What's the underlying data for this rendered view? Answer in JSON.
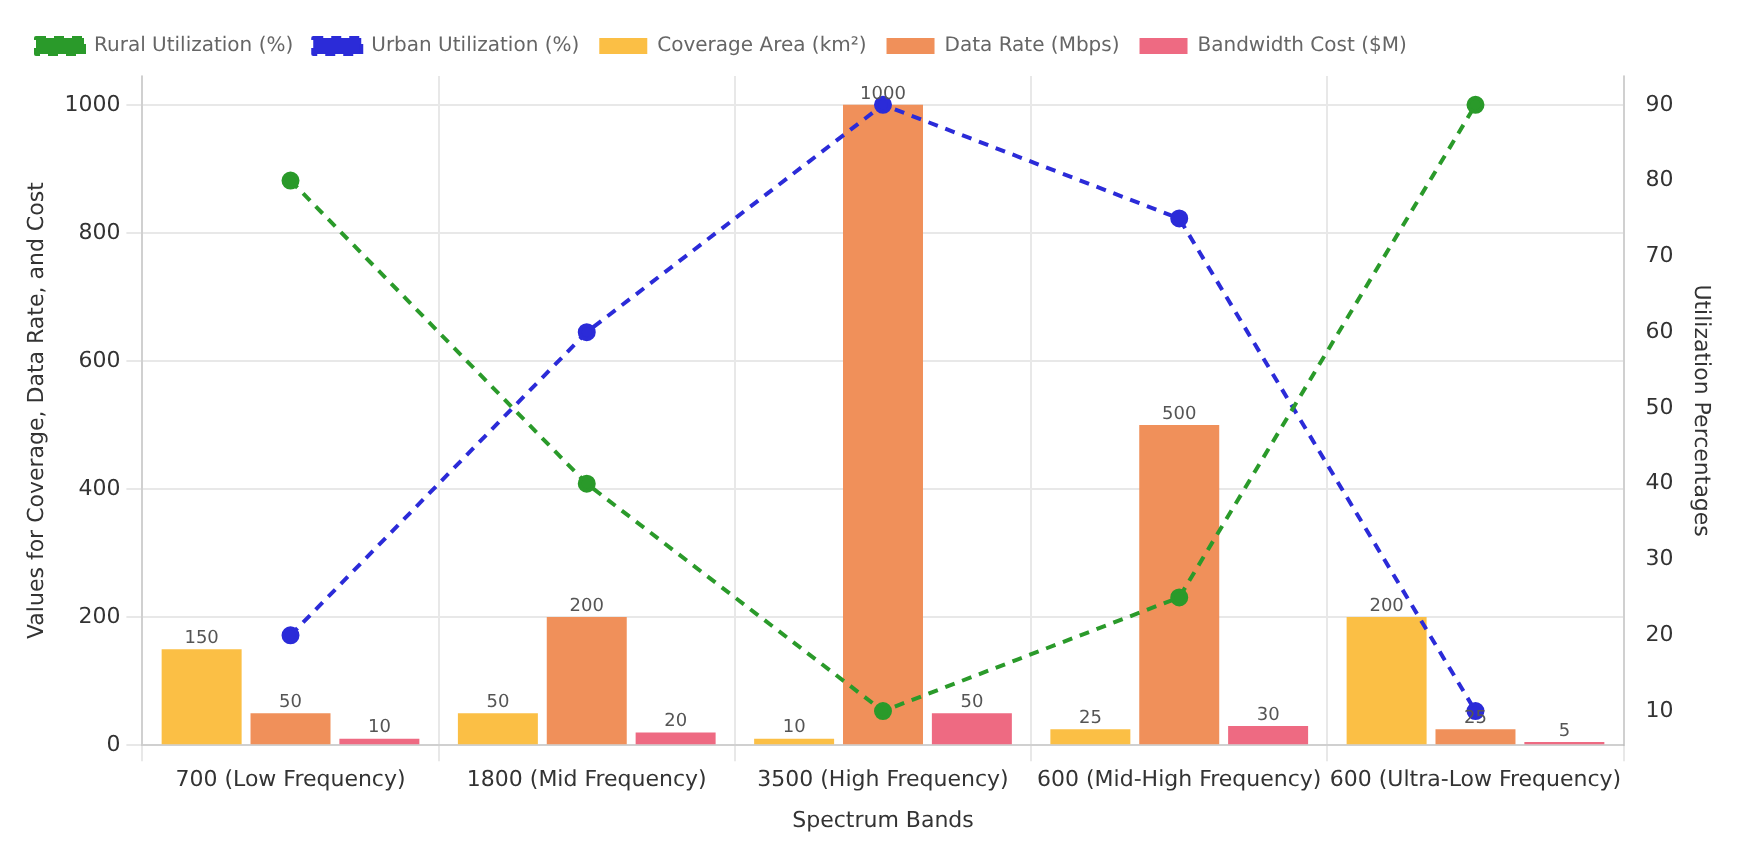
{
  "chart_data": {
    "type": "bar",
    "xlabel": "Spectrum Bands",
    "ylabel": "Values for Coverage, Data Rate, and Cost",
    "y2label": "Utilization Percentages",
    "categories": [
      "700 (Low Frequency)",
      "1800 (Mid Frequency)",
      "3500 (High Frequency)",
      "600 (Mid-High Frequency)",
      "600 (Ultra-Low Frequency)"
    ],
    "series": [
      {
        "name": "Coverage Area (km²)",
        "color": "#fbbf45",
        "values": [
          150,
          50,
          10,
          25,
          200
        ],
        "value_labels": [
          "150",
          "50",
          "10",
          "25",
          "200"
        ]
      },
      {
        "name": "Data Rate (Mbps)",
        "color": "#f0905a",
        "values": [
          50,
          200,
          1000,
          500,
          25
        ],
        "value_labels": [
          "50",
          "200",
          "1000",
          "500",
          "25"
        ]
      },
      {
        "name": "Bandwidth Cost ($M)",
        "color": "#ee6a82",
        "values": [
          10,
          20,
          50,
          30,
          5
        ],
        "value_labels": [
          "10",
          "20",
          "50",
          "30",
          "5"
        ]
      },
      {
        "name": "Rural Utilization (%)",
        "type": "line",
        "axis": "y2",
        "color": "#2a9a2a",
        "values": [
          80,
          40,
          10,
          25,
          90
        ],
        "marker": "circle",
        "line_style": "dashed"
      },
      {
        "name": "Urban Utilization (%)",
        "type": "line",
        "axis": "y2",
        "color": "#2b2bd8",
        "values": [
          20,
          60,
          90,
          75,
          10
        ],
        "marker": "circle",
        "line_style": "dashed"
      }
    ],
    "ylim": [
      0,
      1045
    ],
    "yticks": [
      0,
      200,
      400,
      600,
      800,
      1000
    ],
    "y2lim": [
      5.5,
      93.8
    ],
    "y2ticks": [
      10,
      20,
      30,
      40,
      50,
      60,
      70,
      80,
      90
    ],
    "grid": true,
    "legend": "top left"
  }
}
